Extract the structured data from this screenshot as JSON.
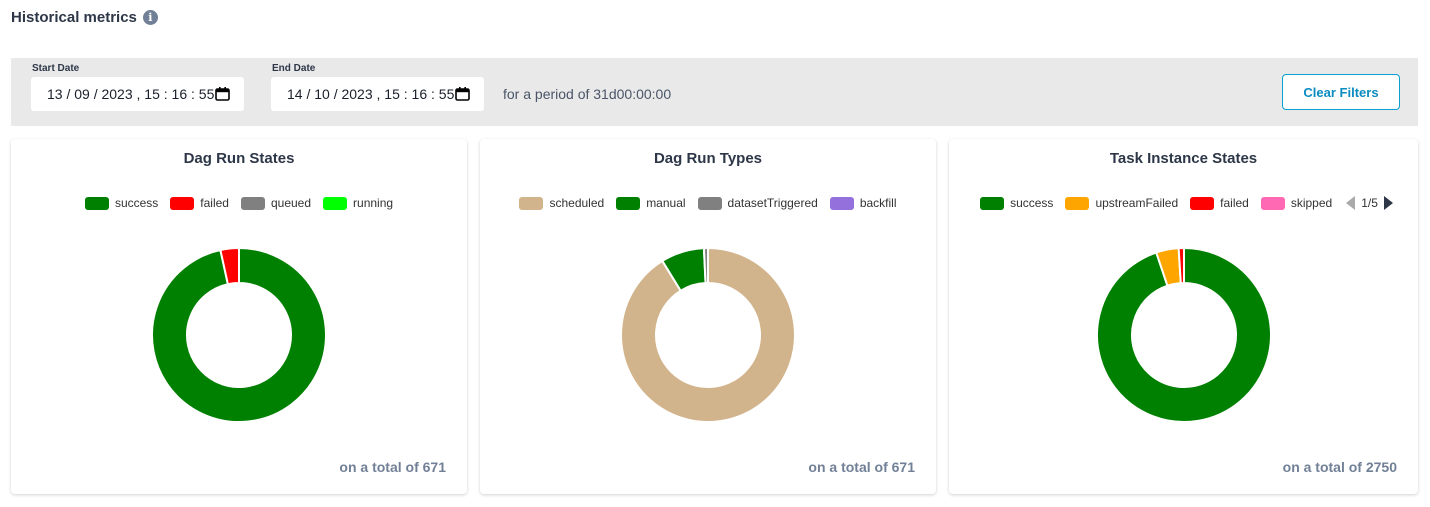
{
  "header": {
    "title": "Historical metrics",
    "info_icon": "info-icon"
  },
  "filters": {
    "start_label": "Start Date",
    "start_value": "13 / 09 / 2023 ,  15 : 16 : 55",
    "end_label": "End Date",
    "end_value": "14 / 10 / 2023 ,  15 : 16 : 55",
    "period_text": "for a period of 31d00:00:00",
    "clear_label": "Clear Filters",
    "calendar_icon": "calendar-icon"
  },
  "cards": [
    {
      "title": "Dag Run States",
      "total_text": "on a total of 671",
      "legend": [
        {
          "label": "success",
          "color": "#008000"
        },
        {
          "label": "failed",
          "color": "#ff0000"
        },
        {
          "label": "queued",
          "color": "#808080"
        },
        {
          "label": "running",
          "color": "#00ff00"
        }
      ]
    },
    {
      "title": "Dag Run Types",
      "total_text": "on a total of 671",
      "legend": [
        {
          "label": "scheduled",
          "color": "#d2b48c"
        },
        {
          "label": "manual",
          "color": "#008000"
        },
        {
          "label": "datasetTriggered",
          "color": "#808080"
        },
        {
          "label": "backfill",
          "color": "#9370db"
        }
      ]
    },
    {
      "title": "Task Instance States",
      "total_text": "on a total of 2750",
      "legend": [
        {
          "label": "success",
          "color": "#008000"
        },
        {
          "label": "upstreamFailed",
          "color": "#ffa500"
        },
        {
          "label": "failed",
          "color": "#ff0000"
        },
        {
          "label": "skipped",
          "color": "#ff69b4"
        }
      ],
      "pager": "1/5"
    }
  ],
  "chart_data": [
    {
      "type": "pie",
      "title": "Dag Run States",
      "categories": [
        "success",
        "failed",
        "queued",
        "running"
      ],
      "values": [
        648,
        23,
        0,
        0
      ],
      "colors": [
        "#008000",
        "#ff0000",
        "#808080",
        "#00ff00"
      ],
      "total": 671
    },
    {
      "type": "pie",
      "title": "Dag Run Types",
      "categories": [
        "scheduled",
        "manual",
        "datasetTriggered",
        "backfill"
      ],
      "values": [
        612,
        54,
        5,
        0
      ],
      "colors": [
        "#d2b48c",
        "#008000",
        "#808080",
        "#9370db"
      ],
      "total": 671
    },
    {
      "type": "pie",
      "title": "Task Instance States",
      "categories": [
        "success",
        "upstreamFailed",
        "failed",
        "skipped"
      ],
      "values": [
        2608,
        115,
        27,
        0
      ],
      "colors": [
        "#008000",
        "#ffa500",
        "#ff0000",
        "#ff69b4"
      ],
      "total": 2750
    }
  ]
}
